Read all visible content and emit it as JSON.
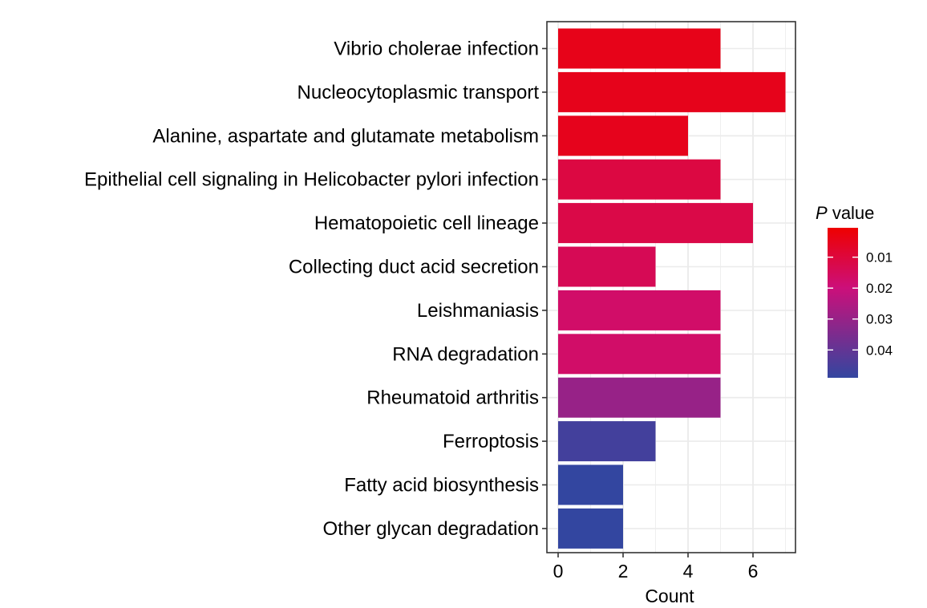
{
  "chart_data": {
    "type": "bar",
    "orientation": "horizontal",
    "xlabel": "Count",
    "ylabel": "",
    "xlim": [
      0,
      7.35
    ],
    "xticks": [
      0,
      2,
      4,
      6
    ],
    "grid": true,
    "categories": [
      "Vibrio cholerae infection",
      "Nucleocytoplasmic transport",
      "Alanine, aspartate and glutamate metabolism",
      "Epithelial cell signaling in Helicobacter pylori infection",
      "Hematopoietic cell lineage",
      "Collecting duct acid secretion",
      "Leishmaniasis",
      "RNA degradation",
      "Rheumatoid arthritis",
      "Ferroptosis",
      "Fatty acid biosynthesis",
      "Other glycan degradation"
    ],
    "values": [
      5,
      7,
      4,
      5,
      6,
      3,
      5,
      5,
      5,
      3,
      2,
      2
    ],
    "p_values": [
      0.0045,
      0.0048,
      0.005,
      0.011,
      0.012,
      0.014,
      0.017,
      0.017,
      0.03,
      0.046,
      0.049,
      0.049
    ],
    "colorbar": {
      "title_italic": "P",
      "title_rest": "value",
      "range": [
        0.0005,
        0.049
      ],
      "ticks": [
        0.01,
        0.02,
        0.03,
        0.04
      ],
      "tick_labels": [
        "0.01",
        "0.02",
        "0.03",
        "0.04"
      ],
      "low_color": "#ee0000",
      "mid_color": "#cc0f7a",
      "high_color": "#3346a0",
      "legend_placement": "right"
    },
    "panel_border_color": "#333333",
    "grid_color": "#ebebeb"
  }
}
